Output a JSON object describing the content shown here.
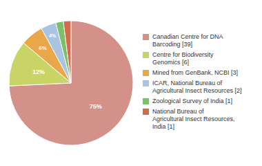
{
  "chart_data": {
    "type": "pie",
    "categories": [
      "Canadian Centre for DNA\nBarcoding [39]",
      "Centre for Biodiversity\nGenomics [6]",
      "Mined from GenBank, NCBI [3]",
      "ICAR, National Bureau of\nAgricultural Insect Resources [2]",
      "Zoological Survey of India [1]",
      "National Bureau of\nAgricultural Insect Resources,\nIndia [1]"
    ],
    "values": [
      75,
      12,
      6,
      4,
      2,
      2
    ],
    "value_labels": [
      "75%",
      "12%",
      "6%",
      "4%",
      null,
      null
    ],
    "colors": [
      "#d4918a",
      "#c9d467",
      "#e8a84a",
      "#a8c4e0",
      "#7bbf6a",
      "#d46a4a"
    ],
    "data_labels": true,
    "legend": "right"
  }
}
